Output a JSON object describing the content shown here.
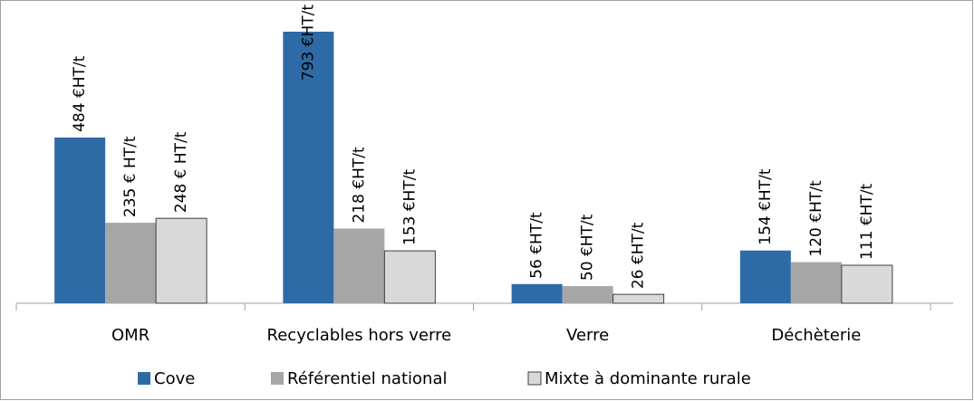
{
  "chart_data": {
    "type": "bar",
    "categories": [
      "OMR",
      "Recyclables hors verre",
      "Verre",
      "Déchèterie"
    ],
    "series": [
      {
        "name": "Cove",
        "color": "#2e6aa6",
        "values": [
          484,
          793,
          56,
          154
        ],
        "value_labels": [
          "484 €HT/t",
          "793 €HT/t",
          "56 €HT/t",
          "154 €HT/t"
        ]
      },
      {
        "name": "Référentiel national",
        "color": "#a6a6a6",
        "values": [
          235,
          218,
          50,
          120
        ],
        "value_labels": [
          "235 € HT/t",
          "218 €HT/t",
          "50 €HT/t",
          "120 €HT/t"
        ]
      },
      {
        "name": "Mixte à dominante rurale",
        "color": "#d9d9d9",
        "values": [
          248,
          153,
          26,
          111
        ],
        "value_labels": [
          "248 € HT/t",
          "153 €HT/t",
          "26 €HT/t",
          "111 €HT/t"
        ]
      }
    ],
    "legend": "bottom"
  }
}
